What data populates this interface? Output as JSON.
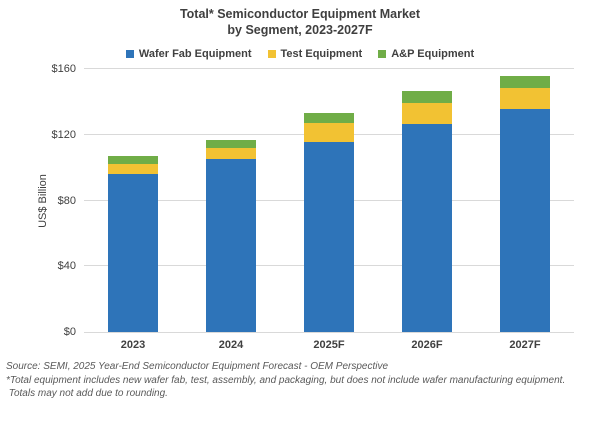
{
  "title": {
    "line1": "Total* Semiconductor Equipment Market",
    "line2": "by Segment, 2023-2027F"
  },
  "y_axis": {
    "title": "US$ Billion",
    "ticks": [
      {
        "label": "$160",
        "value": 160
      },
      {
        "label": "$120",
        "value": 120
      },
      {
        "label": "$80",
        "value": 80
      },
      {
        "label": "$40",
        "value": 40
      },
      {
        "label": "$0",
        "value": 0
      }
    ]
  },
  "footnotes": {
    "line1": "Source: SEMI, 2025 Year-End Semiconductor Equipment Forecast - OEM Perspective",
    "line2": "*Total equipment includes new wafer fab, test, assembly, and packaging, but does not include wafer manufacturing equipment.",
    "line3": " Totals may not add due to rounding."
  },
  "colors": {
    "wfe": "#2E74B9",
    "test": "#F2C233",
    "ap": "#70AD47",
    "grid": "#D9D9D9",
    "text": "#404040",
    "footnote": "#595959"
  },
  "chart_data": {
    "type": "bar",
    "stacked": true,
    "title": "Total* Semiconductor Equipment Market by Segment, 2023-2027F",
    "xlabel": "",
    "ylabel": "US$ Billion",
    "ylim": [
      0,
      160
    ],
    "grid": "horizontal",
    "legend_position": "top",
    "categories": [
      "2023",
      "2024",
      "2025F",
      "2026F",
      "2027F"
    ],
    "series": [
      {
        "name": "Wafer Fab Equipment",
        "color": "#2E74B9",
        "values": [
          96,
          105,
          115.5,
          126.5,
          135.5
        ]
      },
      {
        "name": "Test Equipment",
        "color": "#F2C233",
        "values": [
          6.5,
          7,
          11.5,
          13,
          13
        ]
      },
      {
        "name": "A&P Equipment",
        "color": "#70AD47",
        "values": [
          4.5,
          5,
          6,
          7,
          7
        ]
      }
    ]
  }
}
